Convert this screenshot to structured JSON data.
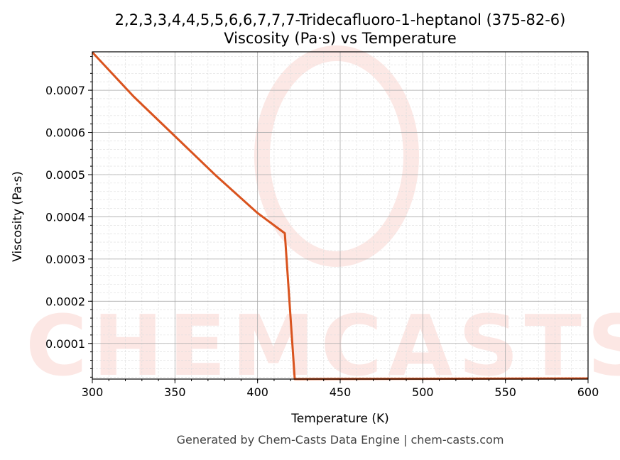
{
  "chart_data": {
    "type": "line",
    "title": "2,2,3,3,4,4,5,5,6,6,7,7,7-Tridecafluoro-1-heptanol (375-82-6)",
    "subtitle": "Viscosity (Pa·s) vs Temperature",
    "xlabel": "Temperature (K)",
    "ylabel": "Viscosity (Pa·s)",
    "xlim": [
      300,
      600
    ],
    "ylim": [
      1.55e-05,
      0.000791
    ],
    "x_ticks": [
      300,
      350,
      400,
      450,
      500,
      550,
      600
    ],
    "y_ticks": [
      0.0001,
      0.0002,
      0.0003,
      0.0004,
      0.0005,
      0.0006,
      0.0007
    ],
    "y_tick_labels": [
      "0.0001",
      "0.0002",
      "0.0003",
      "0.0004",
      "0.0005",
      "0.0006",
      "0.0007"
    ],
    "grid": true,
    "series": [
      {
        "color": "#d9531e",
        "x": [
          300,
          325,
          350,
          375,
          400,
          416.5,
          422.5,
          500,
          600
        ],
        "y": [
          0.00079,
          0.000685,
          0.000591,
          0.000497,
          0.000409,
          0.000361,
          1.55e-05,
          1.62e-05,
          1.7e-05
        ]
      }
    ],
    "watermark": "CHEMCASTS",
    "footer": "Generated by Chem-Casts Data Engine | chem-casts.com"
  }
}
